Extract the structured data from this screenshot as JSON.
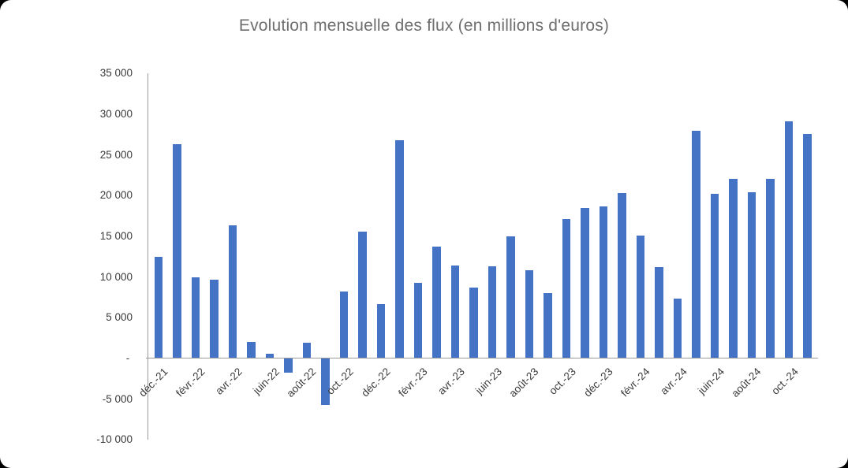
{
  "window": {
    "background_color": "#000000",
    "card_color": "#ffffff"
  },
  "chart_data": {
    "type": "bar",
    "title": "Evolution mensuelle des flux (en millions d'euros)",
    "title_color": "#6e6e6e",
    "bar_color": "#4472C4",
    "axis_color": "#9a9a9a",
    "tick_label_color": "#3a3a3a",
    "ylim": [
      -10000,
      35000
    ],
    "grid": false,
    "legend": false,
    "y_ticks": [
      {
        "value": 35000,
        "label": "35 000"
      },
      {
        "value": 30000,
        "label": "30 000"
      },
      {
        "value": 25000,
        "label": "25 000"
      },
      {
        "value": 20000,
        "label": "20 000"
      },
      {
        "value": 15000,
        "label": "15 000"
      },
      {
        "value": 10000,
        "label": "10 000"
      },
      {
        "value": 5000,
        "label": "5 000"
      },
      {
        "value": 0,
        "label": "- "
      },
      {
        "value": -5000,
        "label": "-5 000"
      },
      {
        "value": -10000,
        "label": "-10 000"
      }
    ],
    "categories": [
      "déc.-21",
      "",
      "févr.-22",
      "",
      "avr.-22",
      "",
      "juin-22",
      "",
      "août-22",
      "",
      "oct.-22",
      "",
      "déc.-22",
      "",
      "févr.-23",
      "",
      "avr.-23",
      "",
      "juin-23",
      "",
      "août-23",
      "",
      "oct.-23",
      "",
      "déc.-23",
      "",
      "févr.-24",
      "",
      "avr.-24",
      "",
      "juin-24",
      "",
      "août-24",
      "",
      "oct.-24",
      ""
    ],
    "values": [
      12500,
      26300,
      10000,
      9700,
      16400,
      2000,
      600,
      -1700,
      1900,
      -5700,
      8200,
      15600,
      6700,
      26800,
      9300,
      13700,
      11400,
      8700,
      11300,
      15000,
      10800,
      8000,
      17100,
      18500,
      18700,
      20300,
      15100,
      11200,
      7400,
      28000,
      20200,
      22100,
      20400,
      22100,
      29100,
      27600
    ]
  }
}
